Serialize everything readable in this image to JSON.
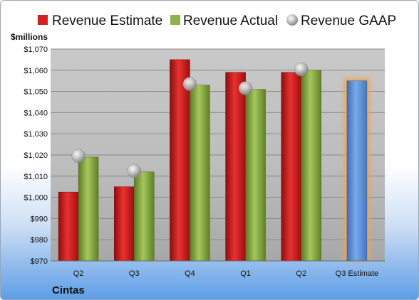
{
  "chart_data": {
    "type": "bar",
    "title": "",
    "ylabel": "$millions",
    "xlabel": "",
    "company": "Cintas",
    "categories": [
      "Q2",
      "Q3",
      "Q4",
      "Q1",
      "Q2",
      "Q3 Estimate"
    ],
    "ylim": [
      970,
      1070
    ],
    "yticks": [
      970,
      980,
      990,
      1000,
      1010,
      1020,
      1030,
      1040,
      1050,
      1060,
      1070
    ],
    "ytick_labels": [
      "$970",
      "$980",
      "$990",
      "$1,000",
      "$1,010",
      "$1,020",
      "$1,030",
      "$1,040",
      "$1,050",
      "$1,060",
      "$1,070"
    ],
    "grid": true,
    "legend_position": "top",
    "series": [
      {
        "name": "Revenue Estimate",
        "type": "bar",
        "color": "#d42020",
        "values": [
          1002.5,
          1005,
          1065,
          1059,
          1059,
          null
        ]
      },
      {
        "name": "Revenue Actual",
        "type": "bar",
        "color": "#8fb04a",
        "values": [
          1019,
          1012,
          1053,
          1051,
          1060,
          null
        ]
      },
      {
        "name": "Revenue GAAP",
        "type": "marker",
        "color": "#b8b8b8",
        "values": [
          1019.5,
          1012.5,
          1053.5,
          1051.5,
          1060.5,
          null
        ]
      },
      {
        "name": "Q3 Estimate",
        "type": "bar",
        "color": "#5b93d8",
        "highlight": "#f3a44a",
        "values": [
          null,
          null,
          null,
          null,
          null,
          1055
        ]
      }
    ]
  }
}
